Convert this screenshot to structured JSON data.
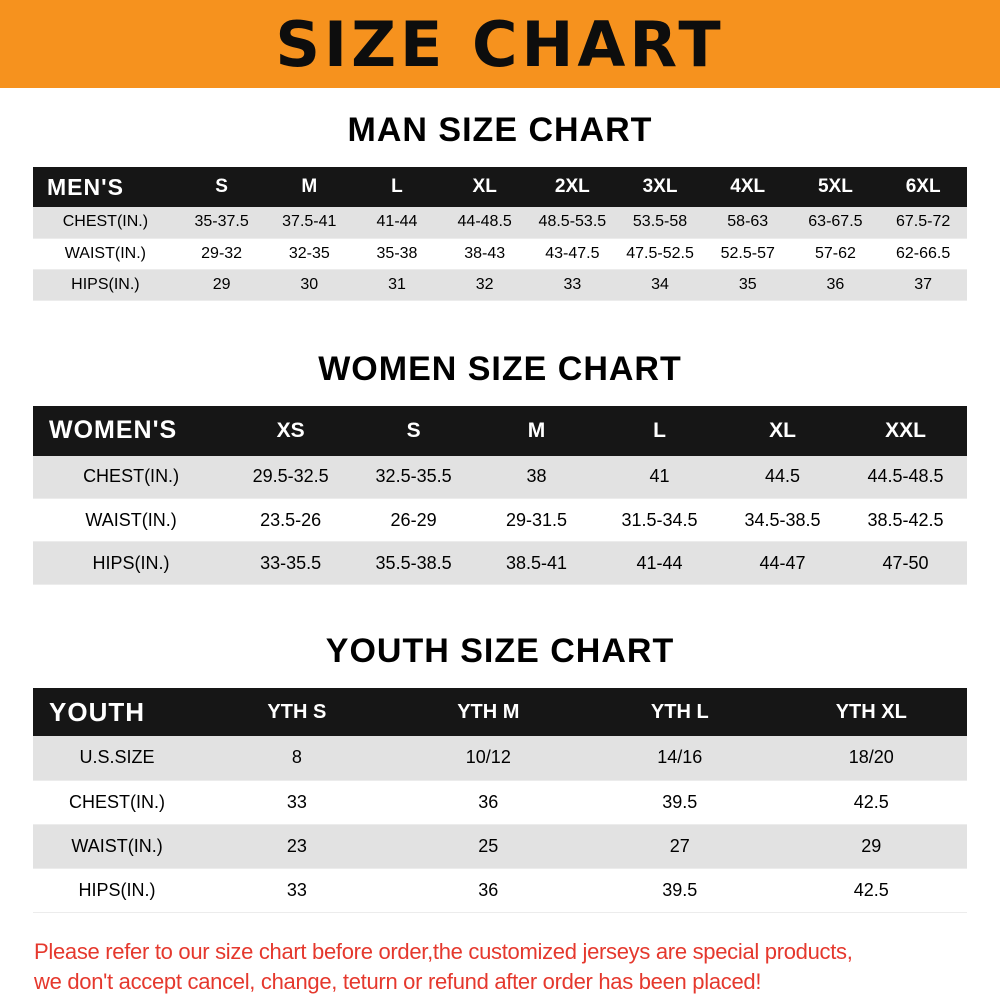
{
  "banner": {
    "title": "SIZE CHART"
  },
  "colors": {
    "banner_bg": "#f6921e",
    "header_bg": "#161616",
    "stripe": "#e2e2e2",
    "notice_red": "#e5382d"
  },
  "sections": [
    {
      "heading": "MAN SIZE CHART",
      "table": {
        "header": [
          "MEN'S",
          "S",
          "M",
          "L",
          "XL",
          "2XL",
          "3XL",
          "4XL",
          "5XL",
          "6XL"
        ],
        "rows": [
          [
            "CHEST(IN.)",
            "35-37.5",
            "37.5-41",
            "41-44",
            "44-48.5",
            "48.5-53.5",
            "53.5-58",
            "58-63",
            "63-67.5",
            "67.5-72"
          ],
          [
            "WAIST(IN.)",
            "29-32",
            "32-35",
            "35-38",
            "38-43",
            "43-47.5",
            "47.5-52.5",
            "52.5-57",
            "57-62",
            "62-66.5"
          ],
          [
            "HIPS(IN.)",
            "29",
            "30",
            "31",
            "32",
            "33",
            "34",
            "35",
            "36",
            "37"
          ]
        ]
      }
    },
    {
      "heading": "WOMEN SIZE CHART",
      "table": {
        "header": [
          "WOMEN'S",
          "XS",
          "S",
          "M",
          "L",
          "XL",
          "XXL"
        ],
        "rows": [
          [
            "CHEST(IN.)",
            "29.5-32.5",
            "32.5-35.5",
            "38",
            "41",
            "44.5",
            "44.5-48.5"
          ],
          [
            "WAIST(IN.)",
            "23.5-26",
            "26-29",
            "29-31.5",
            "31.5-34.5",
            "34.5-38.5",
            "38.5-42.5"
          ],
          [
            "HIPS(IN.)",
            "33-35.5",
            "35.5-38.5",
            "38.5-41",
            "41-44",
            "44-47",
            "47-50"
          ]
        ]
      }
    },
    {
      "heading": "YOUTH SIZE CHART",
      "table": {
        "header": [
          "YOUTH",
          "YTH S",
          "YTH M",
          "YTH L",
          "YTH XL"
        ],
        "rows": [
          [
            "U.S.SIZE",
            "8",
            "10/12",
            "14/16",
            "18/20"
          ],
          [
            "CHEST(IN.)",
            "33",
            "36",
            "39.5",
            "42.5"
          ],
          [
            "WAIST(IN.)",
            "23",
            "25",
            "27",
            "29"
          ],
          [
            "HIPS(IN.)",
            "33",
            "36",
            "39.5",
            "42.5"
          ]
        ]
      }
    }
  ],
  "footer": {
    "line1": "Please refer to our size chart before order,the customized jerseys are special products,",
    "line2": "we don't accept cancel, change, teturn or refund after order has been placed!"
  }
}
